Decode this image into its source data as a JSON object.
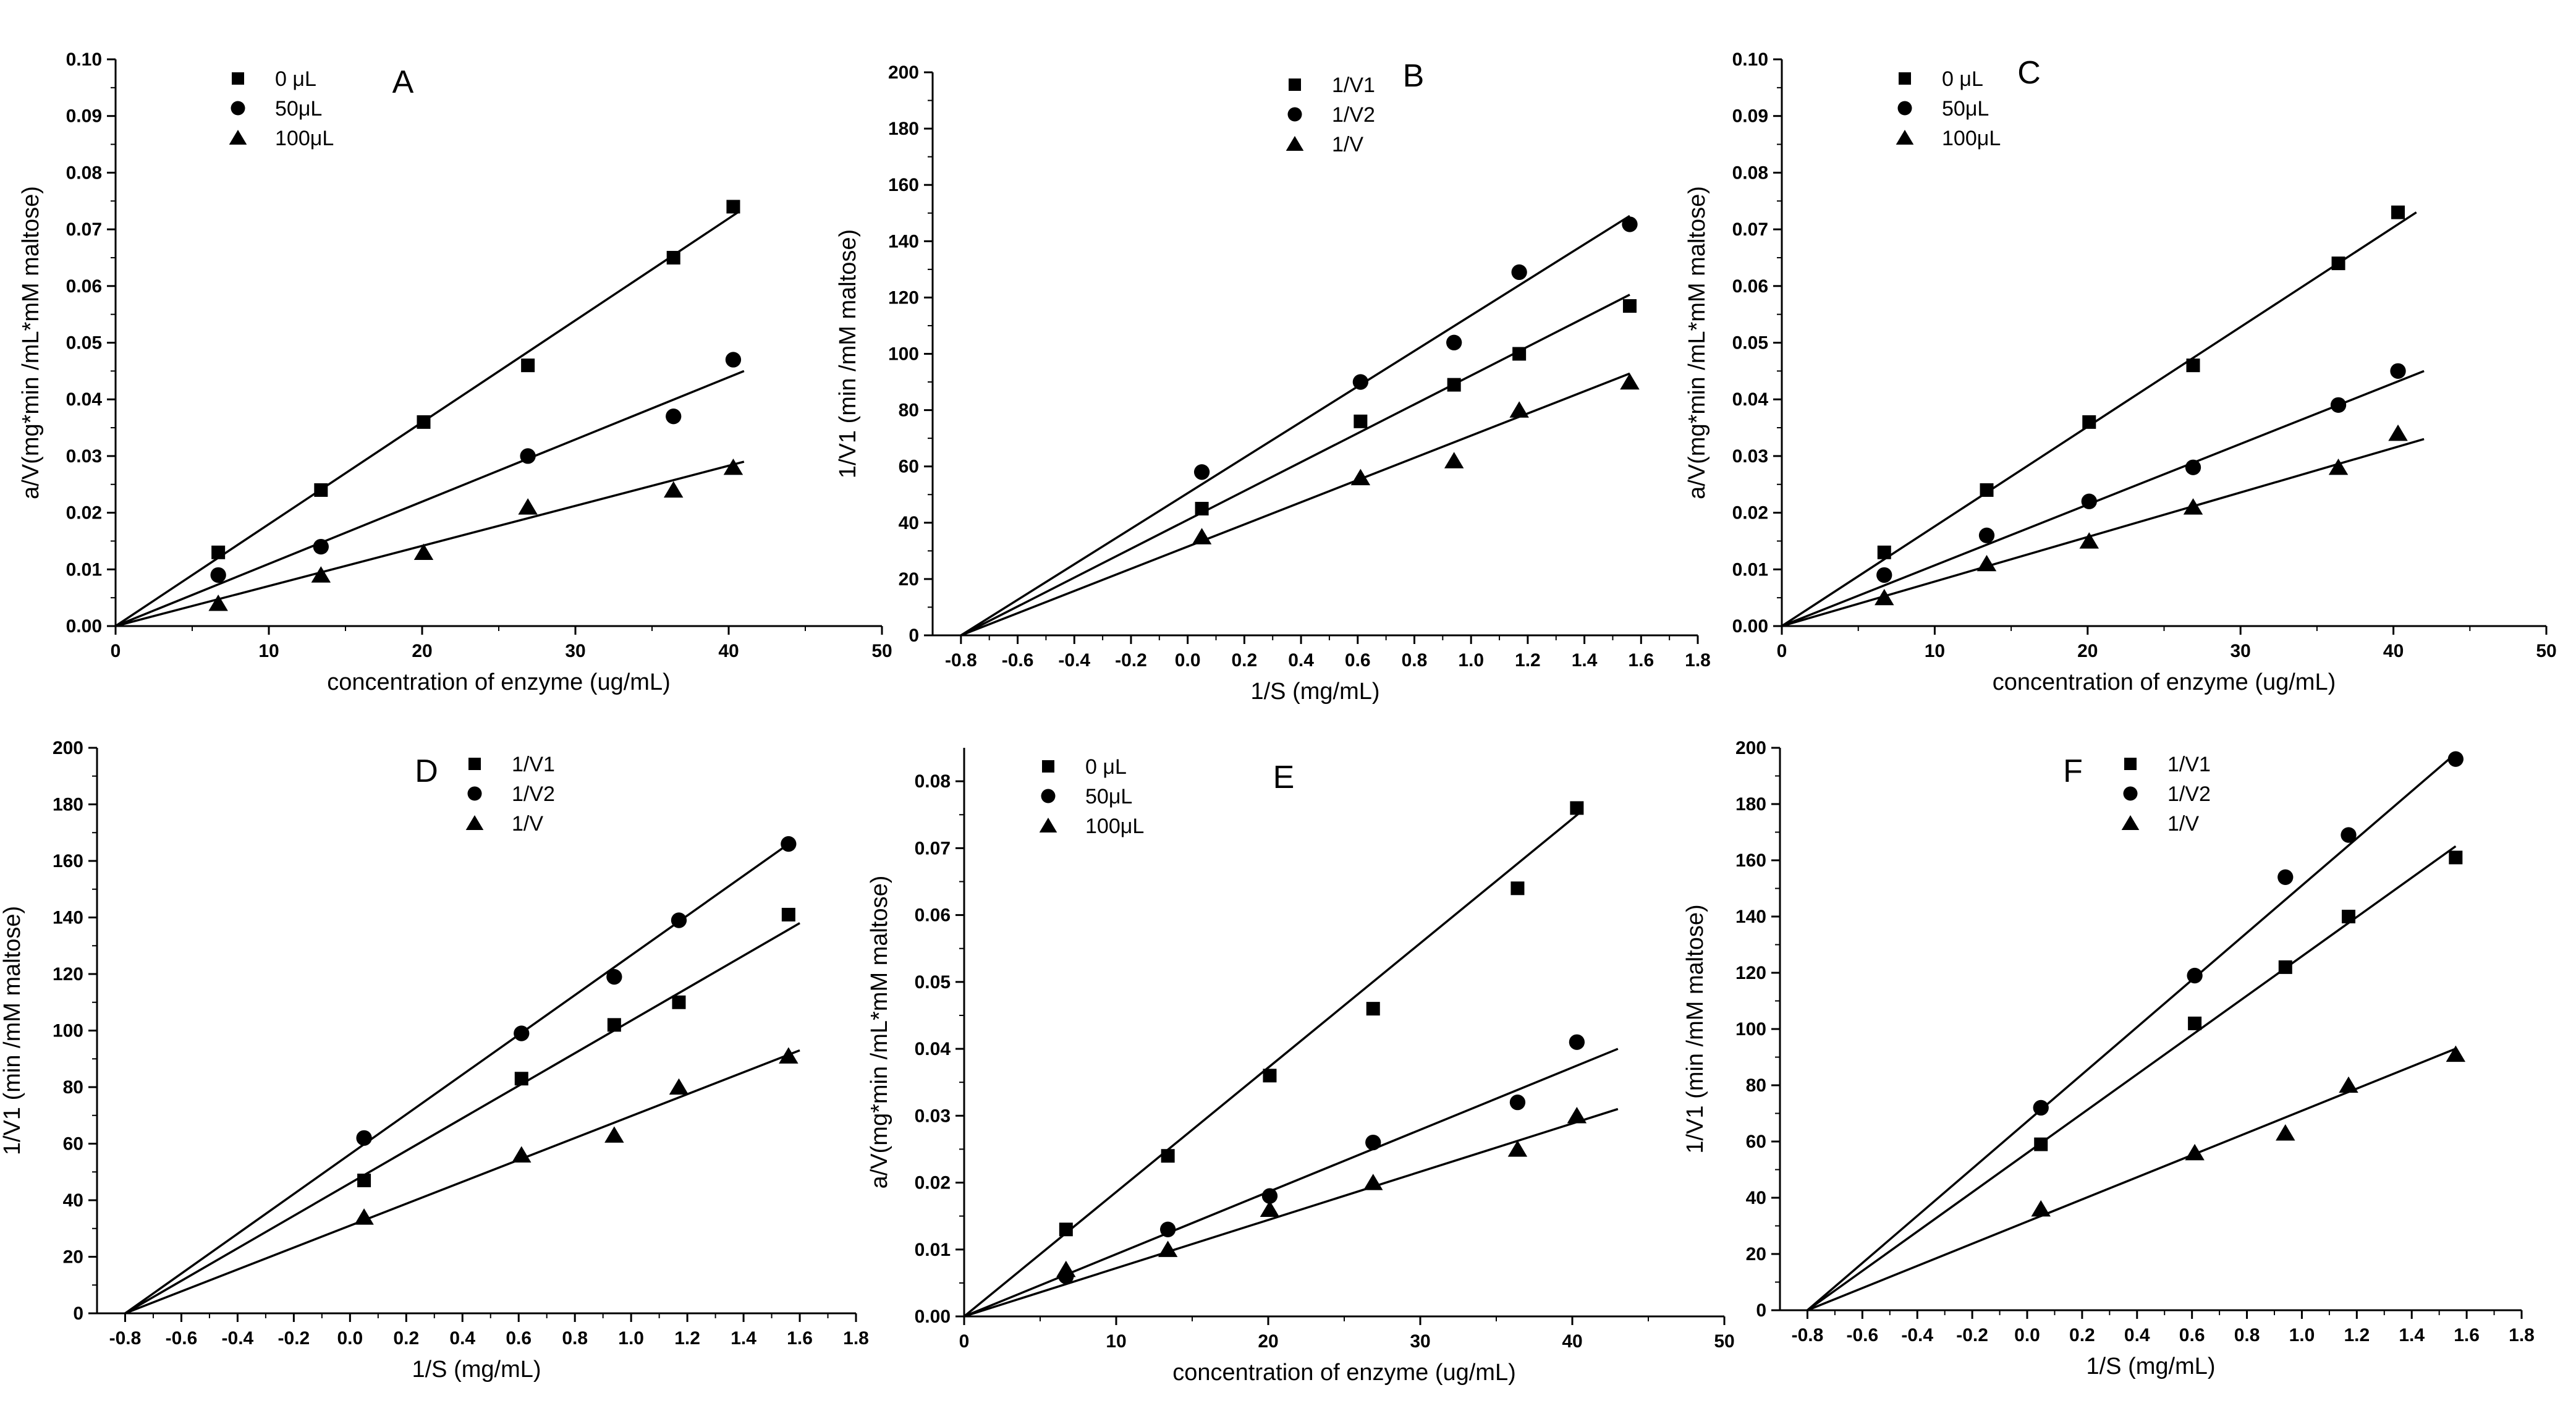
{
  "figure": {
    "panels": [
      {
        "letter": "A",
        "chart_data": {
          "type": "scatter",
          "panel_label": "A",
          "xlabel": "concentration of enzyme (ug/mL)",
          "ylabel": "a/V(mg*min /mL*mM maltose)",
          "xlim": [
            0,
            50
          ],
          "ylim": [
            0,
            0.1
          ],
          "xticks": [
            "0",
            "10",
            "20",
            "30",
            "40",
            "50"
          ],
          "yticks": [
            "0.00",
            "0.01",
            "0.02",
            "0.03",
            "0.04",
            "0.05",
            "0.06",
            "0.07",
            "0.08",
            "0.09",
            "0.10"
          ],
          "series": [
            {
              "name": "0 μL",
              "marker": "square",
              "x": [
                6.7,
                13.4,
                20.1,
                26.9,
                36.4,
                40.3
              ],
              "y": [
                0.013,
                0.024,
                0.036,
                0.046,
                0.065,
                0.074
              ],
              "fit": {
                "x": [
                  0,
                  40.6
                ],
                "y": [
                  0,
                  0.073
                ]
              }
            },
            {
              "name": "50μL",
              "marker": "circle",
              "x": [
                6.7,
                13.4,
                26.9,
                36.4,
                40.3
              ],
              "y": [
                0.009,
                0.014,
                0.03,
                0.037,
                0.047
              ],
              "fit": {
                "x": [
                  0,
                  41.0
                ],
                "y": [
                  0,
                  0.045
                ]
              }
            },
            {
              "name": "100μL",
              "marker": "triangle",
              "x": [
                6.7,
                13.4,
                20.1,
                26.9,
                36.4,
                40.3
              ],
              "y": [
                0.004,
                0.009,
                0.013,
                0.021,
                0.024,
                0.028
              ],
              "fit": {
                "x": [
                  0,
                  41.0
                ],
                "y": [
                  0,
                  0.029
                ]
              }
            }
          ]
        }
      },
      {
        "letter": "B",
        "chart_data": {
          "type": "scatter",
          "panel_label": "B",
          "xlabel": "1/S (mg/mL)",
          "ylabel": "1/V1 (min /mM maltose)",
          "xlim": [
            -0.9,
            1.8
          ],
          "ylim": [
            0,
            200
          ],
          "xticks": [
            "-0.8",
            "-0.6",
            "-0.4",
            "-0.2",
            "0.0",
            "0.2",
            "0.4",
            "0.6",
            "0.8",
            "1.0",
            "1.2",
            "1.4",
            "1.6",
            "1.8"
          ],
          "yticks": [
            "0",
            "20",
            "40",
            "60",
            "80",
            "100",
            "120",
            "140",
            "160",
            "180",
            "200"
          ],
          "series": [
            {
              "name": "1/V1",
              "marker": "square",
              "x": [
                0.05,
                0.61,
                0.94,
                1.17,
                1.56
              ],
              "y": [
                45,
                76,
                89,
                100,
                117
              ],
              "fit": {
                "x": [
                  -0.8,
                  1.56
                ],
                "y": [
                  0,
                  121
                ]
              }
            },
            {
              "name": "1/V2",
              "marker": "circle",
              "x": [
                0.05,
                0.61,
                0.94,
                1.17,
                1.56
              ],
              "y": [
                58,
                90,
                104,
                129,
                146
              ],
              "fit": {
                "x": [
                  -0.8,
                  1.56
                ],
                "y": [
                  0,
                  149
                ]
              }
            },
            {
              "name": "1/V",
              "marker": "triangle",
              "x": [
                0.05,
                0.61,
                0.94,
                1.17,
                1.56
              ],
              "y": [
                35,
                56,
                62,
                80,
                90
              ],
              "fit": {
                "x": [
                  -0.8,
                  1.56
                ],
                "y": [
                  0,
                  93
                ]
              }
            }
          ]
        }
      },
      {
        "letter": "C",
        "chart_data": {
          "type": "scatter",
          "panel_label": "C",
          "xlabel": "concentration of enzyme (ug/mL)",
          "ylabel": "a/V(mg*min /mL*mM maltose)",
          "xlim": [
            0,
            50
          ],
          "ylim": [
            0,
            0.1
          ],
          "xticks": [
            "0",
            "10",
            "20",
            "30",
            "40",
            "50"
          ],
          "yticks": [
            "0.00",
            "0.01",
            "0.02",
            "0.03",
            "0.04",
            "0.05",
            "0.06",
            "0.07",
            "0.08",
            "0.09",
            "0.10"
          ],
          "series": [
            {
              "name": "0 μL",
              "marker": "square",
              "x": [
                6.7,
                13.4,
                20.1,
                26.9,
                36.4,
                40.3
              ],
              "y": [
                0.013,
                0.024,
                0.036,
                0.046,
                0.064,
                0.073
              ],
              "fit": {
                "x": [
                  0,
                  41.5
                ],
                "y": [
                  0,
                  0.073
                ]
              }
            },
            {
              "name": "50μL",
              "marker": "circle",
              "x": [
                6.7,
                13.4,
                20.1,
                26.9,
                36.4,
                40.3
              ],
              "y": [
                0.009,
                0.016,
                0.022,
                0.028,
                0.039,
                0.045
              ],
              "fit": {
                "x": [
                  0,
                  42.0
                ],
                "y": [
                  0,
                  0.045
                ]
              }
            },
            {
              "name": "100μL",
              "marker": "triangle",
              "x": [
                6.7,
                13.4,
                20.1,
                26.9,
                36.4,
                40.3
              ],
              "y": [
                0.005,
                0.011,
                0.015,
                0.021,
                0.028,
                0.034
              ],
              "fit": {
                "x": [
                  0,
                  42.0
                ],
                "y": [
                  0,
                  0.033
                ]
              }
            }
          ]
        }
      },
      {
        "letter": "D",
        "chart_data": {
          "type": "scatter",
          "panel_label": "D",
          "xlabel": "1/S (mg/mL)",
          "ylabel": "1/V1 (min /mM maltose)",
          "xlim": [
            -0.9,
            1.8
          ],
          "ylim": [
            0,
            200
          ],
          "xticks": [
            "-0.8",
            "-0.6",
            "-0.4",
            "-0.2",
            "0.0",
            "0.2",
            "0.4",
            "0.6",
            "0.8",
            "1.0",
            "1.2",
            "1.4",
            "1.6",
            "1.8"
          ],
          "yticks": [
            "0",
            "20",
            "40",
            "60",
            "80",
            "100",
            "120",
            "140",
            "160",
            "180",
            "200"
          ],
          "series": [
            {
              "name": "1/V1",
              "marker": "square",
              "x": [
                0.05,
                0.61,
                0.94,
                1.17,
                1.56
              ],
              "y": [
                47,
                83,
                102,
                110,
                141
              ],
              "fit": {
                "x": [
                  -0.8,
                  1.6
                ],
                "y": [
                  0,
                  138
                ]
              }
            },
            {
              "name": "1/V2",
              "marker": "circle",
              "x": [
                0.05,
                0.61,
                0.94,
                1.17,
                1.56
              ],
              "y": [
                62,
                99,
                119,
                139,
                166
              ],
              "fit": {
                "x": [
                  -0.8,
                  1.56
                ],
                "y": [
                  0,
                  166
                ]
              }
            },
            {
              "name": "1/V",
              "marker": "triangle",
              "x": [
                0.05,
                0.61,
                0.94,
                1.17,
                1.56
              ],
              "y": [
                34,
                56,
                63,
                80,
                91
              ],
              "fit": {
                "x": [
                  -0.8,
                  1.6
                ],
                "y": [
                  0,
                  93
                ]
              }
            }
          ]
        }
      },
      {
        "letter": "E",
        "chart_data": {
          "type": "scatter",
          "panel_label": "E",
          "xlabel": "concentration of enzyme (ug/mL)",
          "ylabel": "a/V(mg*min /mL*mM maltose)",
          "xlim": [
            0,
            50
          ],
          "ylim": [
            0,
            0.085
          ],
          "xticks": [
            "0",
            "10",
            "20",
            "30",
            "40",
            "50"
          ],
          "yticks": [
            "0.00",
            "0.01",
            "0.02",
            "0.03",
            "0.04",
            "0.05",
            "0.06",
            "0.07",
            "0.08"
          ],
          "series": [
            {
              "name": "0 μL",
              "marker": "square",
              "x": [
                6.7,
                13.4,
                20.1,
                26.9,
                36.4,
                40.3
              ],
              "y": [
                0.013,
                0.024,
                0.036,
                0.046,
                0.064,
                0.076
              ],
              "fit": {
                "x": [
                  0,
                  40.6
                ],
                "y": [
                  0,
                  0.0755
                ]
              }
            },
            {
              "name": "50μL",
              "marker": "circle",
              "x": [
                6.7,
                13.4,
                20.1,
                26.9,
                36.4,
                40.3
              ],
              "y": [
                0.006,
                0.013,
                0.018,
                0.026,
                0.032,
                0.041
              ],
              "fit": {
                "x": [
                  0,
                  43.0
                ],
                "y": [
                  0,
                  0.04
                ]
              }
            },
            {
              "name": "100μL",
              "marker": "triangle",
              "x": [
                6.7,
                13.4,
                20.1,
                26.9,
                36.4,
                40.3
              ],
              "y": [
                0.007,
                0.01,
                0.016,
                0.02,
                0.025,
                0.03
              ],
              "fit": {
                "x": [
                  0,
                  43.0
                ],
                "y": [
                  0,
                  0.031
                ]
              }
            }
          ]
        }
      },
      {
        "letter": "F",
        "chart_data": {
          "type": "scatter",
          "panel_label": "F",
          "xlabel": "1/S (mg/mL)",
          "ylabel": "1/V1 (min /mM maltose)",
          "xlim": [
            -0.9,
            1.8
          ],
          "ylim": [
            0,
            200
          ],
          "xticks": [
            "-0.8",
            "-0.6",
            "-0.4",
            "-0.2",
            "0.0",
            "0.2",
            "0.4",
            "0.6",
            "0.8",
            "1.0",
            "1.2",
            "1.4",
            "1.6",
            "1.8"
          ],
          "yticks": [
            "0",
            "20",
            "40",
            "60",
            "80",
            "100",
            "120",
            "140",
            "160",
            "180",
            "200"
          ],
          "series": [
            {
              "name": "1/V1",
              "marker": "square",
              "x": [
                0.05,
                0.61,
                0.94,
                1.17,
                1.56
              ],
              "y": [
                59,
                102,
                122,
                140,
                161
              ],
              "fit": {
                "x": [
                  -0.8,
                  1.56
                ],
                "y": [
                  0,
                  165
                ]
              }
            },
            {
              "name": "1/V2",
              "marker": "circle",
              "x": [
                0.05,
                0.61,
                0.94,
                1.17,
                1.56
              ],
              "y": [
                72,
                119,
                154,
                169,
                196
              ],
              "fit": {
                "x": [
                  -0.8,
                  1.56
                ],
                "y": [
                  0,
                  198
                ]
              }
            },
            {
              "name": "1/V",
              "marker": "triangle",
              "x": [
                0.05,
                0.61,
                0.94,
                1.17,
                1.56
              ],
              "y": [
                36,
                56,
                63,
                80,
                91
              ],
              "fit": {
                "x": [
                  -0.8,
                  1.56
                ],
                "y": [
                  0,
                  93
                ]
              }
            }
          ]
        }
      }
    ]
  }
}
